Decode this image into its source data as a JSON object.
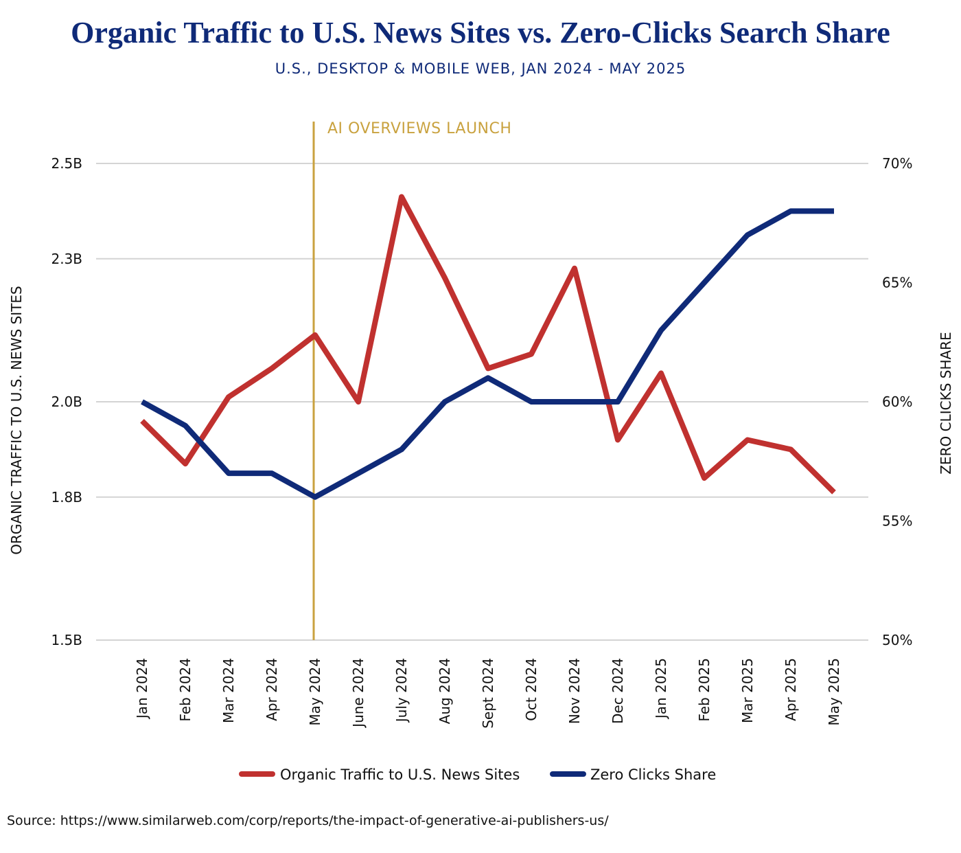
{
  "title": "Organic Traffic to U.S. News Sites vs. Zero-Clicks Search Share",
  "subtitle": "U.S., DESKTOP & MOBILE WEB, JAN 2024 - MAY 2025",
  "source": "Source: https://www.similarweb.com/corp/reports/the-impact-of-generative-ai-publishers-us/",
  "colors": {
    "organic": "#c0312f",
    "zero_clicks": "#0f2a78",
    "annotation": "#c9a23f",
    "grid": "#d4d4d4"
  },
  "chart_data": {
    "type": "line",
    "categories": [
      "Jan 2024",
      "Feb 2024",
      "Mar 2024",
      "Apr 2024",
      "May 2024",
      "June 2024",
      "July 2024",
      "Aug 2024",
      "Sept 2024",
      "Oct 2024",
      "Nov 2024",
      "Dec 2024",
      "Jan 2025",
      "Feb 2025",
      "Mar 2025",
      "Apr 2025",
      "May 2025"
    ],
    "series": [
      {
        "name": "Organic Traffic to U.S. News Sites",
        "axis": "left",
        "color": "#c0312f",
        "values": [
          1.96,
          1.87,
          2.01,
          2.07,
          2.14,
          2.0,
          2.43,
          2.26,
          2.07,
          2.1,
          2.28,
          1.92,
          2.06,
          1.84,
          1.92,
          1.9,
          1.81
        ]
      },
      {
        "name": "Zero Clicks Share",
        "axis": "right",
        "color": "#0f2a78",
        "values": [
          60,
          59,
          57,
          57,
          56,
          57,
          58,
          60,
          61,
          60,
          60,
          60,
          63,
          65,
          67,
          68,
          68
        ]
      }
    ],
    "y_left": {
      "label": "ORGANIC TRAFFIC TO U.S. NEWS SITES",
      "ticks": [
        1.5,
        1.8,
        2.0,
        2.3,
        2.5
      ],
      "tick_labels": [
        "1.5B",
        "1.8B",
        "2.0B",
        "2.3B",
        "2.5B"
      ],
      "ylim": [
        1.5,
        2.5
      ]
    },
    "y_right": {
      "label": "ZERO CLICKS SHARE",
      "ticks": [
        50,
        55,
        60,
        65,
        70
      ],
      "tick_labels": [
        "50%",
        "55%",
        "60%",
        "65%",
        "70%"
      ],
      "ylim": [
        50,
        70
      ]
    },
    "annotation": {
      "label": "AI OVERVIEWS LAUNCH",
      "category": "May 2024"
    },
    "grid": true,
    "legend_position": "bottom"
  }
}
